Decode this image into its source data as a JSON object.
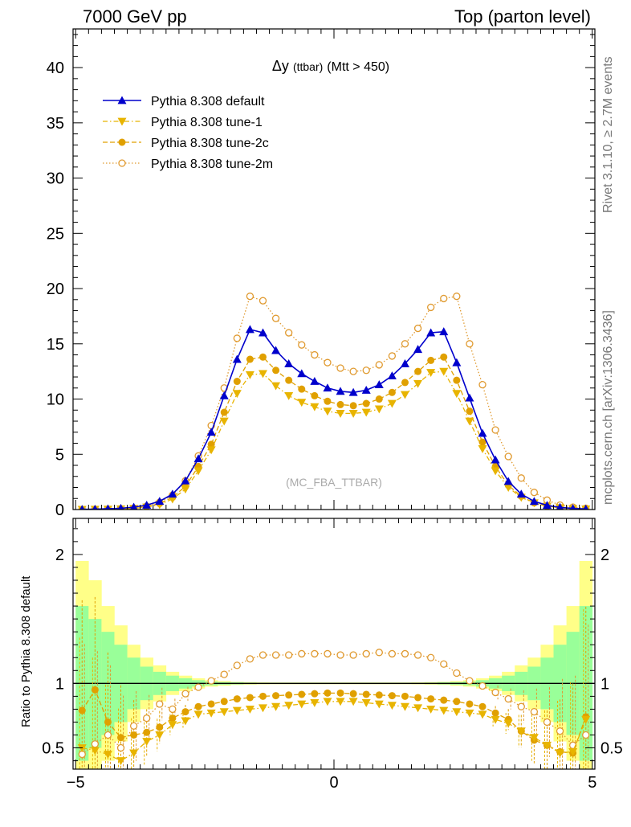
{
  "header": {
    "left": "7000 GeV pp",
    "right": "Top (parton level)"
  },
  "side_labels": {
    "rivet": "Rivet 3.1.10, ≥ 2.7M events",
    "mcplots": "mcplots.cern.ch [arXiv:1306.3436]"
  },
  "chart_data": [
    {
      "type": "line",
      "title_main": "Δy",
      "title_small": "(ttbar)",
      "title_cut": "(Mtt > 450)",
      "watermark": "(MC_FBA_TTBAR)",
      "xlabel": "",
      "ylabel": "",
      "xlim": [
        -5.05,
        5.05
      ],
      "ylim": [
        0,
        43.5
      ],
      "yticks": [
        0,
        5,
        10,
        15,
        20,
        25,
        30,
        35,
        40
      ],
      "legend_position": "top-left",
      "x": [
        -4.875,
        -4.625,
        -4.375,
        -4.125,
        -3.875,
        -3.625,
        -3.375,
        -3.125,
        -2.875,
        -2.625,
        -2.375,
        -2.125,
        -1.875,
        -1.625,
        -1.375,
        -1.125,
        -0.875,
        -0.625,
        -0.375,
        -0.125,
        0.125,
        0.375,
        0.625,
        0.875,
        1.125,
        1.375,
        1.625,
        1.875,
        2.125,
        2.375,
        2.625,
        2.875,
        3.125,
        3.375,
        3.625,
        3.875,
        4.125,
        4.375,
        4.625,
        4.875
      ],
      "series": [
        {
          "name": "Pythia 8.308 default",
          "color": "#0000cc",
          "marker": "triangle-up",
          "line": "solid",
          "values": [
            0.02,
            0.04,
            0.07,
            0.12,
            0.22,
            0.4,
            0.75,
            1.4,
            2.6,
            4.6,
            7.0,
            10.3,
            13.6,
            16.3,
            16.0,
            14.4,
            13.2,
            12.3,
            11.6,
            11.0,
            10.7,
            10.6,
            10.8,
            11.3,
            12.1,
            13.2,
            14.5,
            16.0,
            16.1,
            13.3,
            10.1,
            6.9,
            4.5,
            2.55,
            1.4,
            0.74,
            0.38,
            0.2,
            0.1,
            0.05
          ]
        },
        {
          "name": "Pythia 8.308 tune-1",
          "color": "#e8b400",
          "marker": "triangle-down",
          "line": "dashdot",
          "values": [
            0.01,
            0.02,
            0.03,
            0.05,
            0.1,
            0.22,
            0.45,
            0.95,
            1.85,
            3.5,
            5.4,
            8.0,
            10.5,
            12.2,
            12.3,
            11.2,
            10.3,
            9.7,
            9.3,
            8.9,
            8.7,
            8.7,
            8.8,
            9.1,
            9.6,
            10.4,
            11.4,
            12.4,
            12.5,
            10.5,
            8.0,
            5.5,
            3.5,
            2.0,
            1.1,
            0.6,
            0.3,
            0.16,
            0.08,
            0.04
          ]
        },
        {
          "name": "Pythia 8.308 tune-2c",
          "color": "#e0a000",
          "marker": "circle",
          "line": "dashed",
          "values": [
            0.02,
            0.03,
            0.05,
            0.07,
            0.13,
            0.27,
            0.55,
            1.1,
            2.1,
            3.9,
            5.9,
            8.8,
            11.6,
            13.6,
            13.8,
            12.6,
            11.7,
            10.9,
            10.3,
            9.8,
            9.5,
            9.4,
            9.6,
            10.0,
            10.6,
            11.5,
            12.5,
            13.5,
            13.8,
            11.7,
            8.9,
            6.1,
            3.9,
            2.2,
            1.2,
            0.6,
            0.3,
            0.16,
            0.08,
            0.04
          ]
        },
        {
          "name": "Pythia 8.308 tune-2m",
          "color": "#e09a30",
          "marker": "open-circle",
          "line": "dotted",
          "values": [
            0.01,
            0.02,
            0.03,
            0.06,
            0.12,
            0.3,
            0.65,
            1.3,
            2.6,
            4.85,
            7.6,
            11.0,
            15.5,
            19.3,
            18.9,
            17.3,
            16.0,
            14.9,
            14.0,
            13.3,
            12.8,
            12.5,
            12.6,
            13.1,
            13.9,
            15.0,
            16.4,
            18.3,
            19.1,
            19.3,
            15.0,
            11.3,
            7.2,
            4.8,
            2.85,
            1.55,
            0.85,
            0.4,
            0.22,
            0.12
          ]
        }
      ]
    },
    {
      "type": "line",
      "title": "",
      "xlabel": "",
      "ylabel": "Ratio to Pythia 8.308 default",
      "xlim": [
        -5.05,
        5.05
      ],
      "ylim": [
        0.335,
        2.28
      ],
      "xticks": [
        -5,
        0,
        5
      ],
      "yticks": [
        0.5,
        1,
        2
      ],
      "reference_line": 1,
      "bands": {
        "inner_color": "#99ff99",
        "outer_color": "#ffff88",
        "inner": [
          0.6,
          0.5,
          0.4,
          0.3,
          0.2,
          0.13,
          0.09,
          0.06,
          0.04,
          0.025,
          0.015,
          0.01,
          0.008,
          0.006,
          0.005,
          0.005,
          0.005,
          0.005,
          0.005,
          0.005,
          0.005,
          0.005,
          0.005,
          0.005,
          0.005,
          0.005,
          0.005,
          0.006,
          0.008,
          0.01,
          0.015,
          0.025,
          0.04,
          0.06,
          0.09,
          0.13,
          0.2,
          0.3,
          0.4,
          0.6
        ],
        "outer": [
          0.95,
          0.8,
          0.6,
          0.45,
          0.3,
          0.2,
          0.14,
          0.09,
          0.06,
          0.04,
          0.025,
          0.018,
          0.012,
          0.01,
          0.008,
          0.007,
          0.007,
          0.007,
          0.007,
          0.007,
          0.007,
          0.007,
          0.007,
          0.007,
          0.007,
          0.007,
          0.008,
          0.01,
          0.012,
          0.018,
          0.025,
          0.04,
          0.06,
          0.09,
          0.14,
          0.2,
          0.3,
          0.45,
          0.6,
          0.95
        ]
      },
      "x": [
        -4.875,
        -4.625,
        -4.375,
        -4.125,
        -3.875,
        -3.625,
        -3.375,
        -3.125,
        -2.875,
        -2.625,
        -2.375,
        -2.125,
        -1.875,
        -1.625,
        -1.375,
        -1.125,
        -0.875,
        -0.625,
        -0.375,
        -0.125,
        0.125,
        0.375,
        0.625,
        0.875,
        1.125,
        1.375,
        1.625,
        1.875,
        2.125,
        2.375,
        2.625,
        2.875,
        3.125,
        3.375,
        3.625,
        3.875,
        4.125,
        4.375,
        4.625,
        4.875
      ],
      "series": [
        {
          "name": "Pythia 8.308 tune-1",
          "color": "#e8b400",
          "marker": "triangle-down",
          "line": "dashdot",
          "values": [
            0.5,
            0.48,
            0.45,
            0.4,
            0.46,
            0.55,
            0.6,
            0.68,
            0.71,
            0.76,
            0.77,
            0.78,
            0.79,
            0.8,
            0.81,
            0.82,
            0.83,
            0.84,
            0.85,
            0.86,
            0.86,
            0.86,
            0.85,
            0.84,
            0.83,
            0.82,
            0.81,
            0.8,
            0.79,
            0.78,
            0.77,
            0.76,
            0.72,
            0.69,
            0.63,
            0.58,
            0.52,
            0.46,
            0.47,
            0.72
          ]
        },
        {
          "name": "Pythia 8.308 tune-2c",
          "color": "#e0a000",
          "marker": "circle",
          "line": "dashed",
          "values": [
            0.79,
            0.95,
            0.7,
            0.58,
            0.6,
            0.62,
            0.66,
            0.73,
            0.78,
            0.82,
            0.84,
            0.86,
            0.88,
            0.89,
            0.9,
            0.905,
            0.91,
            0.915,
            0.92,
            0.925,
            0.925,
            0.92,
            0.915,
            0.91,
            0.905,
            0.9,
            0.89,
            0.88,
            0.87,
            0.86,
            0.84,
            0.82,
            0.77,
            0.72,
            0.63,
            0.56,
            0.52,
            0.47,
            0.46,
            0.74
          ]
        },
        {
          "name": "Pythia 8.308 tune-2m",
          "color": "#e09a30",
          "marker": "open-circle",
          "line": "dotted",
          "values": [
            0.45,
            0.53,
            0.6,
            0.5,
            0.67,
            0.73,
            0.84,
            0.8,
            0.92,
            0.97,
            1.02,
            1.07,
            1.14,
            1.19,
            1.22,
            1.22,
            1.22,
            1.23,
            1.23,
            1.23,
            1.22,
            1.22,
            1.23,
            1.24,
            1.23,
            1.23,
            1.22,
            1.2,
            1.15,
            1.08,
            1.02,
            0.98,
            0.93,
            0.88,
            0.82,
            0.78,
            0.7,
            0.63,
            0.52,
            0.6
          ]
        }
      ]
    }
  ]
}
